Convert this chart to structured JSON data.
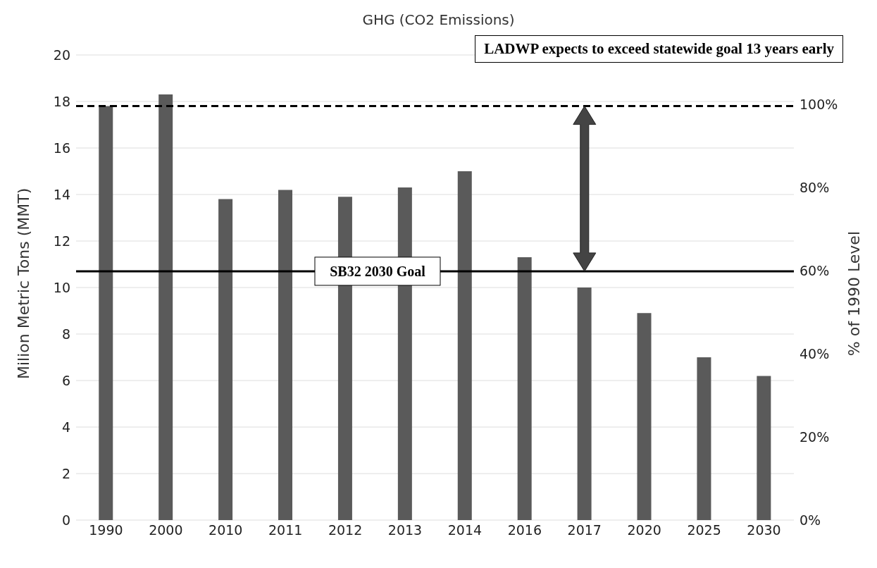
{
  "chart_data": {
    "type": "bar",
    "title": "GHG (CO2 Emissions)",
    "ylabel": "Milion Metric Tons (MMT)",
    "y2label": "% of 1990 Level",
    "categories": [
      "1990",
      "2000",
      "2010",
      "2011",
      "2012",
      "2013",
      "2014",
      "2016",
      "2017",
      "2020",
      "2025",
      "2030"
    ],
    "values": [
      17.8,
      18.3,
      13.8,
      14.2,
      13.9,
      14.3,
      15.0,
      11.3,
      10.0,
      8.9,
      7.0,
      6.2
    ],
    "color": "#5a5a5a",
    "ylim": [
      0,
      20
    ],
    "yticks": [
      0,
      2,
      4,
      6,
      8,
      10,
      12,
      14,
      16,
      18,
      20
    ],
    "y2lim": [
      0,
      112
    ],
    "y2ticks": [
      {
        "value": 0,
        "label": "0%"
      },
      {
        "value": 20,
        "label": "20%"
      },
      {
        "value": 40,
        "label": "40%"
      },
      {
        "value": 60,
        "label": "60%"
      },
      {
        "value": 80,
        "label": "80%"
      },
      {
        "value": 100,
        "label": "100%"
      }
    ],
    "grid": "y",
    "ref_lines": [
      {
        "axis": "y",
        "value": 17.8,
        "line_style": "dashed",
        "color": "#000000"
      },
      {
        "axis": "y",
        "value": 10.7,
        "line_style": "solid",
        "color": "#000000",
        "label": "SB32 2030 Goal"
      }
    ],
    "annotations": [
      "LADWP expects to exceed statewide goal 13 years early"
    ]
  }
}
